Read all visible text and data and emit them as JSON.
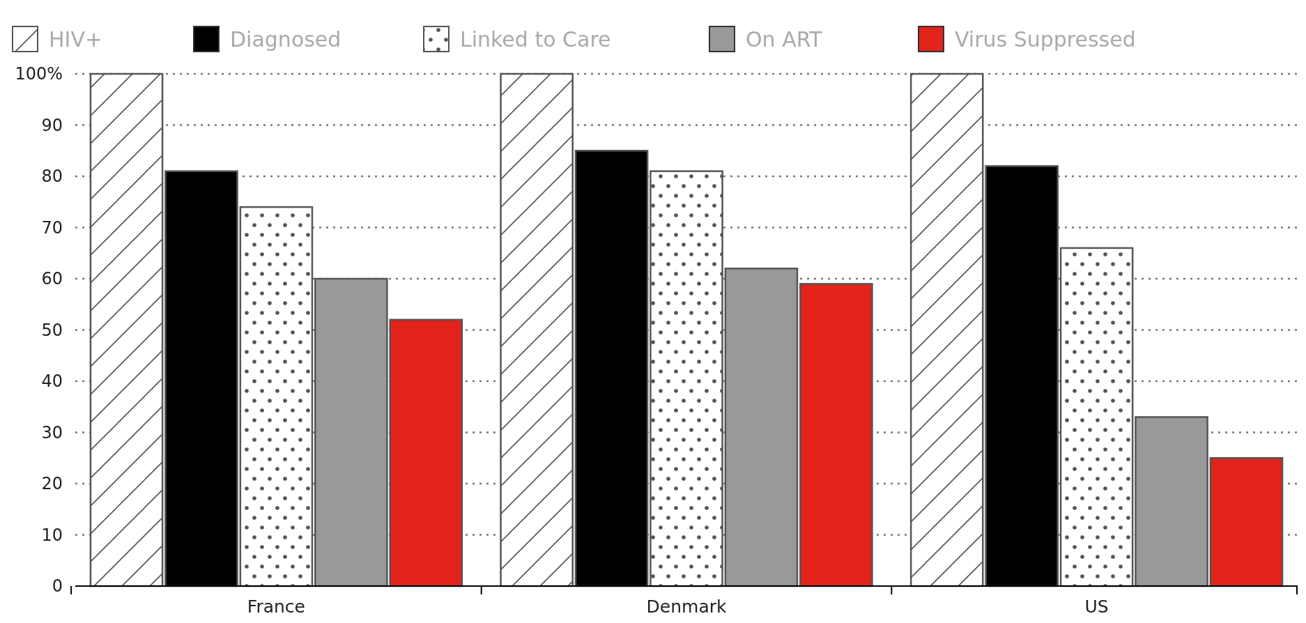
{
  "chart_data": {
    "type": "bar",
    "categories": [
      "France",
      "Denmark",
      "US"
    ],
    "series": [
      {
        "name": "HIV+",
        "color": "#555555",
        "values": [
          100,
          100,
          100
        ]
      },
      {
        "name": "Diagnosed",
        "color": "#000000",
        "values": [
          81,
          85,
          82
        ]
      },
      {
        "name": "Linked to Care",
        "color": "#555555",
        "values": [
          74,
          81,
          66
        ]
      },
      {
        "name": "On ART",
        "color": "#999999",
        "values": [
          60,
          62,
          33
        ]
      },
      {
        "name": "Virus Suppressed",
        "color": "#e2231a",
        "values": [
          52,
          59,
          25
        ]
      }
    ],
    "ylim": [
      0,
      100
    ],
    "yticks": [
      0,
      10,
      20,
      30,
      40,
      50,
      60,
      70,
      80,
      90,
      {
        "value": 100,
        "label": "100%"
      }
    ],
    "grid": "y",
    "legend": "top"
  }
}
